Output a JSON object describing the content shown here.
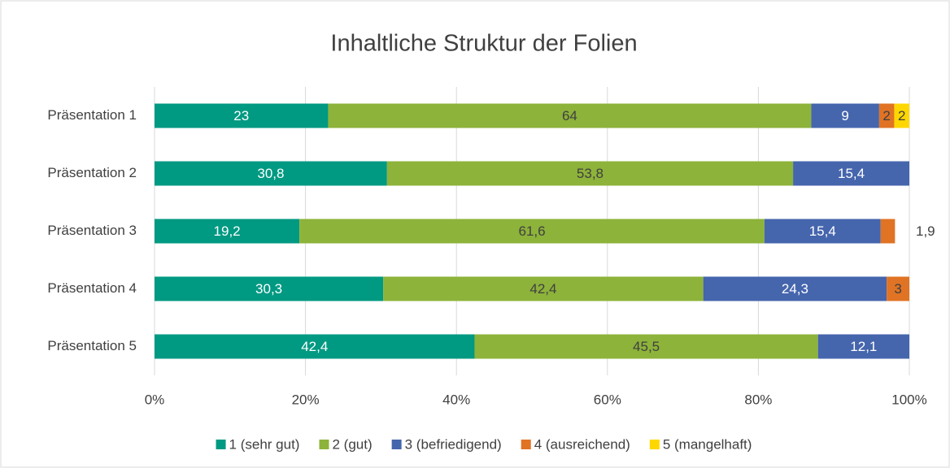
{
  "chart_data": {
    "type": "stacked_bar",
    "orientation": "horizontal",
    "title": "Inhaltliche Struktur der Folien",
    "categories": [
      "Präsentation 1",
      "Präsentation 2",
      "Präsentation 3",
      "Präsentation 4",
      "Präsentation 5"
    ],
    "series": [
      {
        "name": "1 (sehr gut)",
        "color": "#009982",
        "values": [
          23,
          30.8,
          19.2,
          30.3,
          42.4
        ],
        "value_labels": [
          "23",
          "30,8",
          "19,2",
          "30,3",
          "42,4"
        ]
      },
      {
        "name": "2 (gut)",
        "color": "#8db33a",
        "values": [
          64,
          53.8,
          61.6,
          42.4,
          45.5
        ],
        "value_labels": [
          "64",
          "53,8",
          "61,6",
          "42,4",
          "45,5"
        ]
      },
      {
        "name": "3 (befriedigend)",
        "color": "#4565ad",
        "values": [
          9,
          15.4,
          15.4,
          24.3,
          12.1
        ],
        "value_labels": [
          "9",
          "15,4",
          "15,4",
          "24,3",
          "12,1"
        ]
      },
      {
        "name": "4 (ausreichend)",
        "color": "#e07324",
        "values": [
          2,
          null,
          1.9,
          3,
          null
        ],
        "value_labels": [
          "2",
          null,
          "1,9",
          "3",
          null
        ]
      },
      {
        "name": "5 (mangelhaft)",
        "color": "#ffd700",
        "values": [
          2,
          null,
          null,
          null,
          null
        ],
        "value_labels": [
          "2",
          null,
          null,
          null,
          null
        ]
      }
    ],
    "xlim": [
      0,
      100
    ],
    "xticks": [
      {
        "value": 0,
        "label": "0%"
      },
      {
        "value": 20,
        "label": "20%"
      },
      {
        "value": 40,
        "label": "40%"
      },
      {
        "value": 60,
        "label": "60%"
      },
      {
        "value": 80,
        "label": "80%"
      },
      {
        "value": 100,
        "label": "100%"
      }
    ],
    "grid": true,
    "legend": "bottom"
  }
}
